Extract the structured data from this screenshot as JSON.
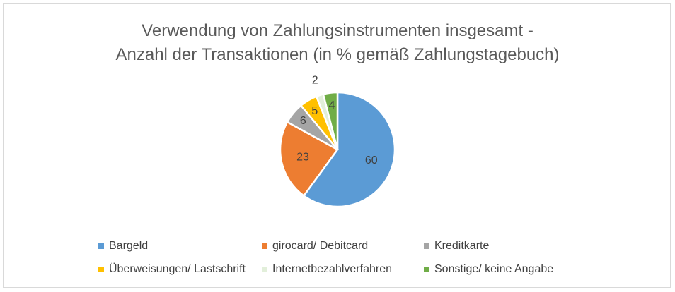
{
  "chart_data": {
    "type": "pie",
    "title_lines": [
      "Verwendung von Zahlungsinstrumenten insgesamt -",
      "Anzahl der Transaktionen (in % gemäß Zahlungstagebuch)"
    ],
    "categories": [
      "Bargeld",
      "girocard/ Debitcard",
      "Kreditkarte",
      "Überweisungen/ Lastschrift",
      "Internetbezahlverfahren",
      "Sonstige/ keine Angabe"
    ],
    "values": [
      60,
      23,
      6,
      5,
      2,
      4
    ],
    "colors": [
      "#5b9bd5",
      "#ed7d31",
      "#a5a5a5",
      "#ffc000",
      "#e2efda",
      "#70ad47"
    ],
    "legend_position": "bottom"
  }
}
